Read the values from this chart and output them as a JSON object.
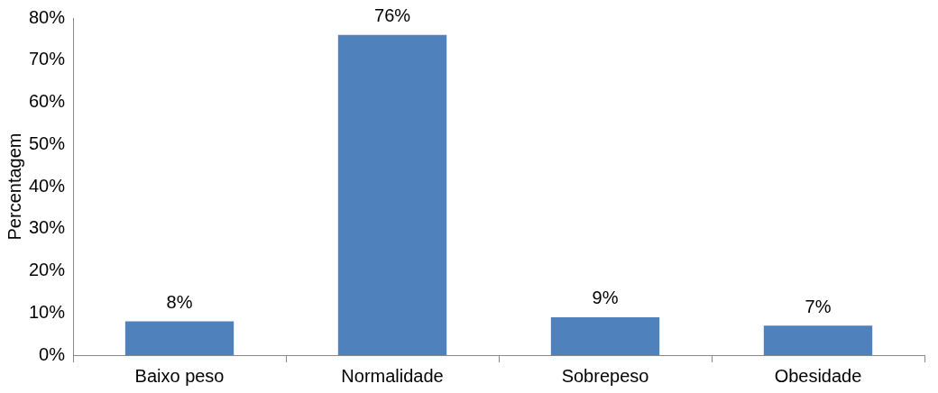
{
  "chart_data": {
    "type": "bar",
    "ylabel": "Percentagem",
    "categories": [
      "Baixo peso",
      "Normalidade",
      "Sobrepeso",
      "Obesidade"
    ],
    "values": [
      8,
      76,
      9,
      7
    ],
    "color": "#4f81bd",
    "value_labels": [
      "8%",
      "76%",
      "9%",
      "7%"
    ],
    "ylim": [
      0,
      80
    ],
    "yticks": [
      {
        "value": 0,
        "label": "0%"
      },
      {
        "value": 10,
        "label": "10%"
      },
      {
        "value": 20,
        "label": "20%"
      },
      {
        "value": 30,
        "label": "30%"
      },
      {
        "value": 40,
        "label": "40%"
      },
      {
        "value": 50,
        "label": "50%"
      },
      {
        "value": 60,
        "label": "60%"
      },
      {
        "value": 70,
        "label": "70%"
      },
      {
        "value": 80,
        "label": "80%"
      }
    ],
    "grid": false,
    "legend": false
  }
}
